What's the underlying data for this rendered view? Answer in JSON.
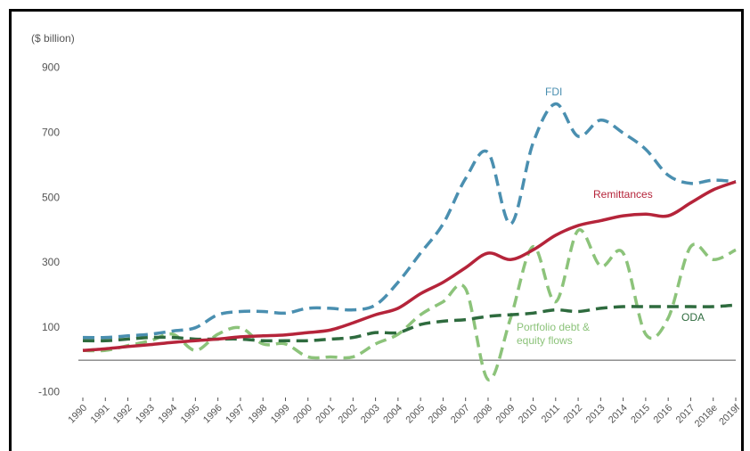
{
  "chart_data": {
    "type": "line",
    "y_label": "($ billion)",
    "categories": [
      "1990",
      "1991",
      "1992",
      "1993",
      "1994",
      "1995",
      "1996",
      "1997",
      "1998",
      "1999",
      "2000",
      "2001",
      "2002",
      "2003",
      "2004",
      "2005",
      "2006",
      "2007",
      "2008",
      "2009",
      "2010",
      "2011",
      "2012",
      "2013",
      "2014",
      "2015",
      "2016",
      "2017",
      "2018e",
      "2019f"
    ],
    "series": [
      {
        "name": "FDI",
        "color": "#4a8fb0",
        "dashed": true,
        "values": [
          70,
          70,
          75,
          80,
          90,
          100,
          140,
          150,
          150,
          145,
          160,
          160,
          155,
          170,
          240,
          330,
          420,
          560,
          640,
          420,
          670,
          790,
          690,
          740,
          700,
          650,
          570,
          545,
          555,
          550
        ]
      },
      {
        "name": "Portfolio debt & equity flows",
        "color": "#8cc37a",
        "dashed": true,
        "values": [
          30,
          30,
          45,
          60,
          80,
          30,
          80,
          100,
          50,
          50,
          10,
          10,
          10,
          50,
          80,
          140,
          180,
          220,
          -60,
          130,
          350,
          180,
          400,
          290,
          330,
          80,
          130,
          350,
          310,
          340
        ]
      },
      {
        "name": "ODA",
        "color": "#2e6b3e",
        "dashed": true,
        "values": [
          60,
          60,
          65,
          70,
          70,
          65,
          65,
          65,
          60,
          60,
          60,
          65,
          70,
          85,
          85,
          110,
          120,
          125,
          135,
          140,
          145,
          155,
          150,
          160,
          165,
          165,
          165,
          165,
          165,
          170
        ]
      },
      {
        "name": "Remittances",
        "color": "#b5243a",
        "dashed": false,
        "values": [
          30,
          35,
          42,
          48,
          55,
          60,
          65,
          72,
          75,
          78,
          85,
          93,
          115,
          140,
          160,
          205,
          240,
          285,
          330,
          310,
          340,
          385,
          415,
          430,
          445,
          450,
          445,
          485,
          525,
          550
        ]
      }
    ],
    "ylim": [
      -100,
      900
    ],
    "yticks": [
      -100,
      100,
      300,
      500,
      700,
      900
    ],
    "grid": false
  }
}
